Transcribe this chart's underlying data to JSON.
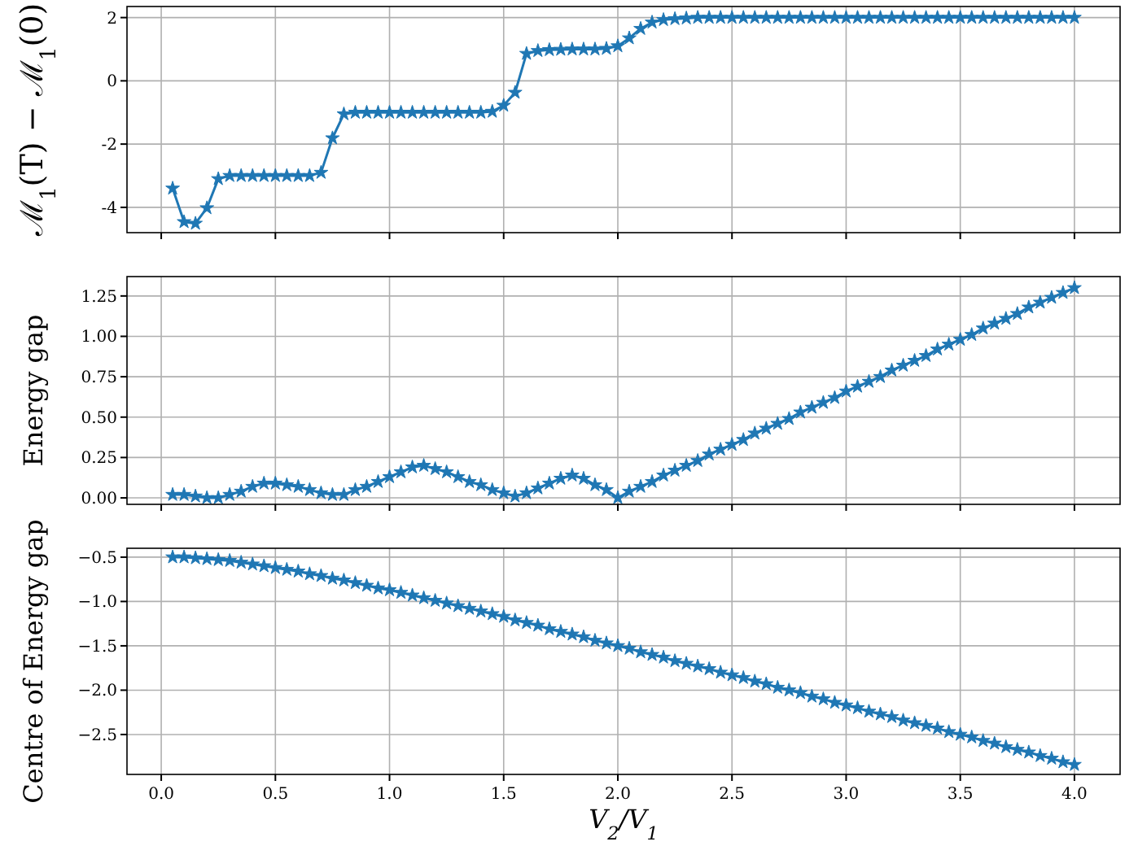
{
  "chart_data": [
    {
      "type": "line",
      "ylabel": "ℳ$_{1}$(T) − ℳ$_{1}$(0)",
      "marker": "star",
      "line_style": "solid",
      "grid": true,
      "tick_labels": "y",
      "xlim": [
        -0.15,
        4.2
      ],
      "xticks": [
        {
          "value": 0,
          "label": null
        },
        {
          "value": 0.5,
          "label": null
        },
        {
          "value": 1,
          "label": null
        },
        {
          "value": 1.5,
          "label": null
        },
        {
          "value": 2,
          "label": null
        },
        {
          "value": 2.5,
          "label": null
        },
        {
          "value": 3,
          "label": null
        },
        {
          "value": 3.5,
          "label": null
        },
        {
          "value": 4,
          "label": null
        }
      ],
      "ylim": [
        -4.8,
        2.35
      ],
      "yticks": [
        -4,
        -2,
        0,
        2
      ],
      "x": [
        0.05,
        0.1,
        0.15,
        0.2,
        0.25,
        0.3,
        0.35,
        0.4,
        0.45,
        0.5,
        0.55,
        0.6,
        0.65,
        0.7,
        0.75,
        0.8,
        0.85,
        0.9,
        0.95,
        1.0,
        1.05,
        1.1,
        1.15,
        1.2,
        1.25,
        1.3,
        1.35,
        1.4,
        1.45,
        1.5,
        1.55,
        1.6,
        1.65,
        1.7,
        1.75,
        1.8,
        1.85,
        1.9,
        1.95,
        2.0,
        2.05,
        2.1,
        2.15,
        2.2,
        2.25,
        2.3,
        2.35,
        2.4,
        2.45,
        2.5,
        2.55,
        2.6,
        2.65,
        2.7,
        2.75,
        2.8,
        2.85,
        2.9,
        2.95,
        3.0,
        3.05,
        3.1,
        3.15,
        3.2,
        3.25,
        3.3,
        3.35,
        3.4,
        3.45,
        3.5,
        3.55,
        3.6,
        3.65,
        3.7,
        3.75,
        3.8,
        3.85,
        3.9,
        3.95,
        4.0
      ],
      "series": [
        {
          "color": "#1f77b4",
          "values": [
            -3.4,
            -4.46,
            -4.51,
            -4.02,
            -3.1,
            -3.0,
            -3.0,
            -3.0,
            -3.0,
            -3.0,
            -3.0,
            -3.0,
            -3.0,
            -2.9,
            -1.81,
            -1.05,
            -1.0,
            -1.0,
            -1.0,
            -1.0,
            -1.0,
            -1.0,
            -1.0,
            -1.0,
            -1.0,
            -1.0,
            -1.0,
            -1.0,
            -0.97,
            -0.78,
            -0.37,
            0.86,
            0.95,
            0.98,
            0.99,
            1.0,
            1.0,
            1.0,
            1.02,
            1.1,
            1.35,
            1.65,
            1.85,
            1.93,
            1.96,
            1.98,
            2.0,
            2.0,
            2.0,
            2.0,
            2.0,
            2.0,
            2.0,
            2.0,
            2.0,
            2.0,
            2.0,
            2.0,
            2.0,
            2.0,
            2.0,
            2.0,
            2.0,
            2.0,
            2.0,
            2.0,
            2.0,
            2.0,
            2.0,
            2.0,
            2.0,
            2.0,
            2.0,
            2.0,
            2.0,
            2.0,
            2.0,
            2.0,
            2.0,
            2.0
          ]
        }
      ]
    },
    {
      "type": "line",
      "ylabel": "Energy gap",
      "marker": "star",
      "line_style": "solid",
      "grid": true,
      "tick_labels": "y",
      "xlim": [
        -0.15,
        4.2
      ],
      "xticks": [
        {
          "value": 0,
          "label": null
        },
        {
          "value": 0.5,
          "label": null
        },
        {
          "value": 1,
          "label": null
        },
        {
          "value": 1.5,
          "label": null
        },
        {
          "value": 2,
          "label": null
        },
        {
          "value": 2.5,
          "label": null
        },
        {
          "value": 3,
          "label": null
        },
        {
          "value": 3.5,
          "label": null
        },
        {
          "value": 4,
          "label": null
        }
      ],
      "ylim": [
        -0.04,
        1.37
      ],
      "yticks": [
        {
          "value": 0,
          "label": "0.00"
        },
        {
          "value": 0.25,
          "label": "0.25"
        },
        {
          "value": 0.5,
          "label": "0.50"
        },
        {
          "value": 0.75,
          "label": "0.75"
        },
        {
          "value": 1,
          "label": "1.00"
        },
        {
          "value": 1.25,
          "label": "1.25"
        }
      ],
      "x": [
        0.05,
        0.1,
        0.15,
        0.2,
        0.25,
        0.3,
        0.35,
        0.4,
        0.45,
        0.5,
        0.55,
        0.6,
        0.65,
        0.7,
        0.75,
        0.8,
        0.85,
        0.9,
        0.95,
        1.0,
        1.05,
        1.1,
        1.15,
        1.2,
        1.25,
        1.3,
        1.35,
        1.4,
        1.45,
        1.5,
        1.55,
        1.6,
        1.65,
        1.7,
        1.75,
        1.8,
        1.85,
        1.9,
        1.95,
        2.0,
        2.05,
        2.1,
        2.15,
        2.2,
        2.25,
        2.3,
        2.35,
        2.4,
        2.45,
        2.5,
        2.55,
        2.6,
        2.65,
        2.7,
        2.75,
        2.8,
        2.85,
        2.9,
        2.95,
        3.0,
        3.05,
        3.1,
        3.15,
        3.2,
        3.25,
        3.3,
        3.35,
        3.4,
        3.45,
        3.5,
        3.55,
        3.6,
        3.65,
        3.7,
        3.75,
        3.8,
        3.85,
        3.9,
        3.95,
        4.0
      ],
      "series": [
        {
          "color": "#1f77b4",
          "values": [
            0.02,
            0.02,
            0.01,
            0.0,
            0.0,
            0.02,
            0.04,
            0.07,
            0.09,
            0.09,
            0.08,
            0.07,
            0.05,
            0.03,
            0.02,
            0.02,
            0.05,
            0.07,
            0.1,
            0.13,
            0.16,
            0.19,
            0.2,
            0.18,
            0.16,
            0.13,
            0.1,
            0.08,
            0.05,
            0.03,
            0.01,
            0.03,
            0.06,
            0.09,
            0.12,
            0.14,
            0.12,
            0.08,
            0.05,
            0.0,
            0.04,
            0.07,
            0.1,
            0.14,
            0.17,
            0.2,
            0.23,
            0.27,
            0.3,
            0.33,
            0.36,
            0.4,
            0.43,
            0.46,
            0.49,
            0.53,
            0.56,
            0.59,
            0.62,
            0.66,
            0.69,
            0.72,
            0.75,
            0.79,
            0.82,
            0.85,
            0.88,
            0.92,
            0.95,
            0.98,
            1.01,
            1.05,
            1.08,
            1.11,
            1.14,
            1.18,
            1.21,
            1.24,
            1.27,
            1.3
          ]
        }
      ]
    },
    {
      "type": "line",
      "ylabel": "Centre of Energy gap",
      "xlabel": "V$_{2}$/V$_{1}$",
      "marker": "star",
      "line_style": "solid",
      "grid": true,
      "xlim": [
        -0.15,
        4.2
      ],
      "xticks": [
        {
          "value": 0,
          "label": "0.0"
        },
        {
          "value": 0.5,
          "label": "0.5"
        },
        {
          "value": 1,
          "label": "1.0"
        },
        {
          "value": 1.5,
          "label": "1.5"
        },
        {
          "value": 2,
          "label": "2.0"
        },
        {
          "value": 2.5,
          "label": "2.5"
        },
        {
          "value": 3,
          "label": "3.0"
        },
        {
          "value": 3.5,
          "label": "3.5"
        },
        {
          "value": 4,
          "label": "4.0"
        }
      ],
      "ylim": [
        -2.95,
        -0.4
      ],
      "yticks": [
        {
          "value": -2.5,
          "label": "−2.5"
        },
        {
          "value": -2,
          "label": "−2.0"
        },
        {
          "value": -1.5,
          "label": "−1.5"
        },
        {
          "value": -1,
          "label": "−1.0"
        },
        {
          "value": -0.5,
          "label": "−0.5"
        }
      ],
      "x": [
        0.05,
        0.1,
        0.15,
        0.2,
        0.25,
        0.3,
        0.35,
        0.4,
        0.45,
        0.5,
        0.55,
        0.6,
        0.65,
        0.7,
        0.75,
        0.8,
        0.85,
        0.9,
        0.95,
        1.0,
        1.05,
        1.1,
        1.15,
        1.2,
        1.25,
        1.3,
        1.35,
        1.4,
        1.45,
        1.5,
        1.55,
        1.6,
        1.65,
        1.7,
        1.75,
        1.8,
        1.85,
        1.9,
        1.95,
        2.0,
        2.05,
        2.1,
        2.15,
        2.2,
        2.25,
        2.3,
        2.35,
        2.4,
        2.45,
        2.5,
        2.55,
        2.6,
        2.65,
        2.7,
        2.75,
        2.8,
        2.85,
        2.9,
        2.95,
        3.0,
        3.05,
        3.1,
        3.15,
        3.2,
        3.25,
        3.3,
        3.35,
        3.4,
        3.45,
        3.5,
        3.55,
        3.6,
        3.65,
        3.7,
        3.75,
        3.8,
        3.85,
        3.9,
        3.95,
        4.0
      ],
      "series": [
        {
          "color": "#1f77b4",
          "values": [
            -0.5,
            -0.5,
            -0.51,
            -0.52,
            -0.53,
            -0.54,
            -0.56,
            -0.58,
            -0.6,
            -0.62,
            -0.64,
            -0.66,
            -0.69,
            -0.71,
            -0.74,
            -0.76,
            -0.79,
            -0.82,
            -0.85,
            -0.87,
            -0.9,
            -0.93,
            -0.96,
            -0.99,
            -1.02,
            -1.05,
            -1.08,
            -1.11,
            -1.14,
            -1.17,
            -1.21,
            -1.24,
            -1.27,
            -1.31,
            -1.34,
            -1.37,
            -1.4,
            -1.44,
            -1.47,
            -1.5,
            -1.53,
            -1.57,
            -1.6,
            -1.63,
            -1.67,
            -1.7,
            -1.73,
            -1.76,
            -1.8,
            -1.83,
            -1.86,
            -1.9,
            -1.93,
            -1.97,
            -2.0,
            -2.03,
            -2.07,
            -2.1,
            -2.14,
            -2.17,
            -2.2,
            -2.24,
            -2.27,
            -2.3,
            -2.34,
            -2.37,
            -2.4,
            -2.43,
            -2.47,
            -2.5,
            -2.53,
            -2.57,
            -2.6,
            -2.64,
            -2.67,
            -2.7,
            -2.74,
            -2.77,
            -2.81,
            -2.84
          ]
        }
      ]
    }
  ]
}
